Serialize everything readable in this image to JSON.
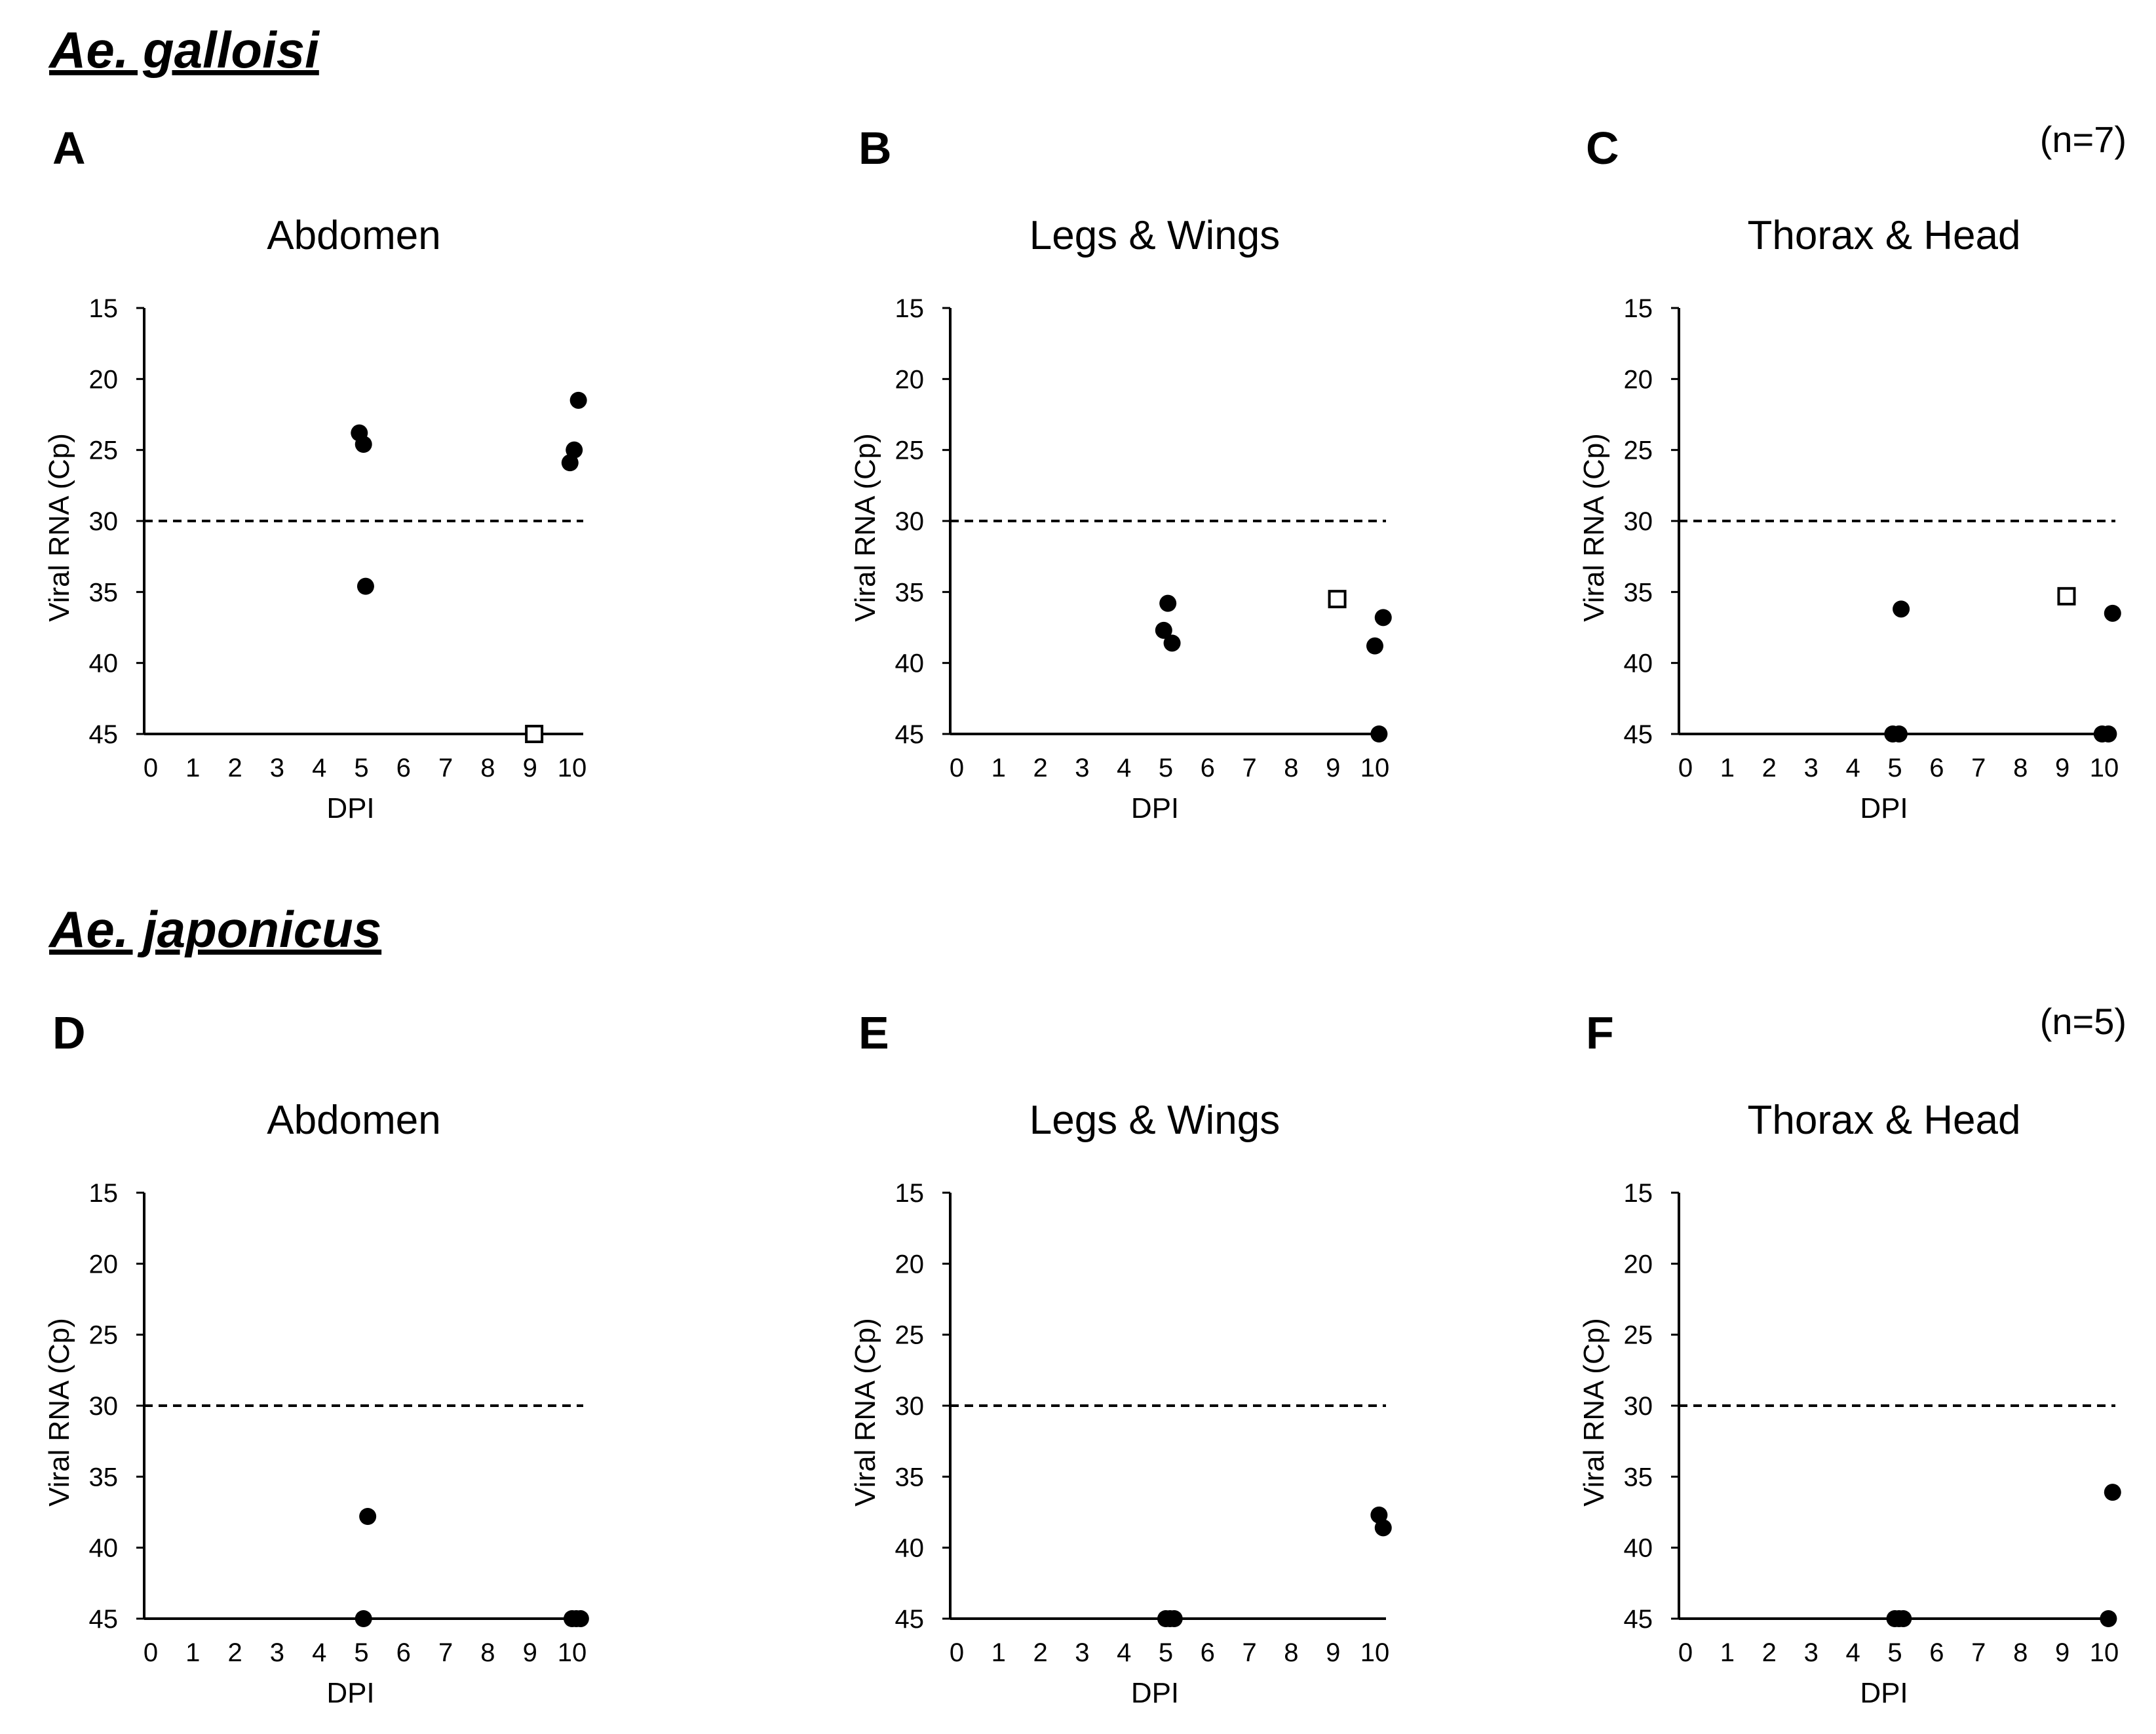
{
  "species": [
    {
      "name": "Ae. galloisi",
      "n_label": "(n=7)"
    },
    {
      "name": "Ae. japonicus",
      "n_label": "(n=5)"
    }
  ],
  "chart_data": [
    {
      "panel": "A",
      "type": "scatter",
      "species": "Ae. galloisi",
      "title": "Abdomen",
      "xlabel": "DPI",
      "ylabel": "Viral RNA (Cp)",
      "xlim": [
        0,
        10
      ],
      "ylim": [
        15,
        45
      ],
      "y_inverted": true,
      "xticks": [
        0,
        1,
        2,
        3,
        4,
        5,
        6,
        7,
        8,
        9,
        10
      ],
      "yticks": [
        15,
        20,
        25,
        30,
        35,
        40,
        45
      ],
      "cutoff": 30,
      "series": [
        {
          "name": "filled circle",
          "marker": "circle",
          "points": [
            [
              4.95,
              23.8
            ],
            [
              5.05,
              24.6
            ],
            [
              5.1,
              34.6
            ],
            [
              9.95,
              25.9
            ],
            [
              10.05,
              25
            ],
            [
              10.15,
              21.5
            ]
          ]
        },
        {
          "name": "open square",
          "marker": "square",
          "points": [
            [
              9.1,
              45
            ]
          ]
        }
      ]
    },
    {
      "panel": "B",
      "type": "scatter",
      "species": "Ae. galloisi",
      "title": "Legs & Wings",
      "xlabel": "DPI",
      "ylabel": "Viral RNA (Cp)",
      "xlim": [
        0,
        10
      ],
      "ylim": [
        15,
        45
      ],
      "y_inverted": true,
      "xticks": [
        0,
        1,
        2,
        3,
        4,
        5,
        6,
        7,
        8,
        9,
        10
      ],
      "yticks": [
        15,
        20,
        25,
        30,
        35,
        40,
        45
      ],
      "cutoff": 30,
      "series": [
        {
          "name": "filled circle",
          "marker": "circle",
          "points": [
            [
              4.95,
              37.7
            ],
            [
              5.05,
              35.8
            ],
            [
              5.15,
              38.6
            ],
            [
              10,
              38.8
            ],
            [
              10.1,
              45
            ],
            [
              10.2,
              36.8
            ]
          ]
        },
        {
          "name": "open square",
          "marker": "square",
          "points": [
            [
              9.1,
              35.5
            ]
          ]
        }
      ]
    },
    {
      "panel": "C",
      "type": "scatter",
      "species": "Ae. galloisi",
      "title": "Thorax & Head",
      "xlabel": "DPI",
      "ylabel": "Viral RNA (Cp)",
      "xlim": [
        0,
        10
      ],
      "ylim": [
        15,
        45
      ],
      "y_inverted": true,
      "xticks": [
        0,
        1,
        2,
        3,
        4,
        5,
        6,
        7,
        8,
        9,
        10
      ],
      "yticks": [
        15,
        20,
        25,
        30,
        35,
        40,
        45
      ],
      "cutoff": 30,
      "series": [
        {
          "name": "filled circle",
          "marker": "circle",
          "points": [
            [
              4.95,
              45
            ],
            [
              5.1,
              45
            ],
            [
              5.15,
              36.2
            ],
            [
              9.95,
              45
            ],
            [
              10.1,
              45
            ],
            [
              10.2,
              36.5
            ]
          ]
        },
        {
          "name": "open square",
          "marker": "square",
          "points": [
            [
              9.1,
              35.3
            ]
          ]
        }
      ]
    },
    {
      "panel": "D",
      "type": "scatter",
      "species": "Ae. japonicus",
      "title": "Abdomen",
      "xlabel": "DPI",
      "ylabel": "Viral RNA (Cp)",
      "xlim": [
        0,
        10
      ],
      "ylim": [
        15,
        45
      ],
      "y_inverted": true,
      "xticks": [
        0,
        1,
        2,
        3,
        4,
        5,
        6,
        7,
        8,
        9,
        10
      ],
      "yticks": [
        15,
        20,
        25,
        30,
        35,
        40,
        45
      ],
      "cutoff": 30,
      "series": [
        {
          "name": "filled circle",
          "marker": "circle",
          "points": [
            [
              5.05,
              45
            ],
            [
              5.15,
              37.8
            ],
            [
              10,
              45
            ],
            [
              10.1,
              45
            ],
            [
              10.2,
              45
            ]
          ]
        }
      ]
    },
    {
      "panel": "E",
      "type": "scatter",
      "species": "Ae. japonicus",
      "title": "Legs & Wings",
      "xlabel": "DPI",
      "ylabel": "Viral RNA (Cp)",
      "xlim": [
        0,
        10
      ],
      "ylim": [
        15,
        45
      ],
      "y_inverted": true,
      "xticks": [
        0,
        1,
        2,
        3,
        4,
        5,
        6,
        7,
        8,
        9,
        10
      ],
      "yticks": [
        15,
        20,
        25,
        30,
        35,
        40,
        45
      ],
      "cutoff": 30,
      "series": [
        {
          "name": "filled circle",
          "marker": "circle",
          "points": [
            [
              5.0,
              45
            ],
            [
              5.1,
              45
            ],
            [
              5.2,
              45
            ],
            [
              10.1,
              37.7
            ],
            [
              10.2,
              38.6
            ]
          ]
        }
      ]
    },
    {
      "panel": "F",
      "type": "scatter",
      "species": "Ae. japonicus",
      "title": "Thorax & Head",
      "xlabel": "DPI",
      "ylabel": "Viral RNA (Cp)",
      "xlim": [
        0,
        10
      ],
      "ylim": [
        15,
        45
      ],
      "y_inverted": true,
      "xticks": [
        0,
        1,
        2,
        3,
        4,
        5,
        6,
        7,
        8,
        9,
        10
      ],
      "yticks": [
        15,
        20,
        25,
        30,
        35,
        40,
        45
      ],
      "cutoff": 30,
      "series": [
        {
          "name": "filled circle",
          "marker": "circle",
          "points": [
            [
              5.0,
              45
            ],
            [
              5.1,
              45
            ],
            [
              5.2,
              45
            ],
            [
              10.1,
              45
            ],
            [
              10.2,
              36.1
            ]
          ]
        }
      ]
    }
  ]
}
